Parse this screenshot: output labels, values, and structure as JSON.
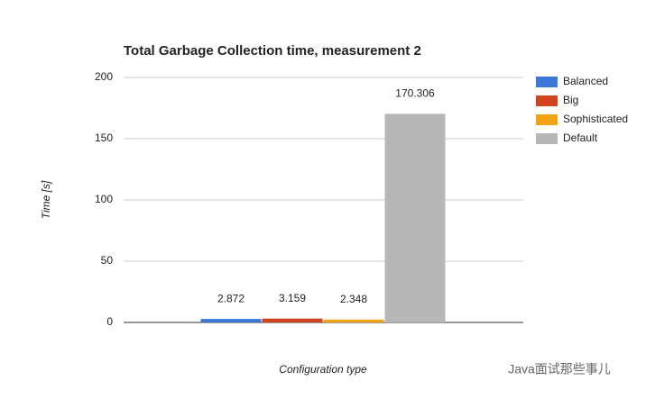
{
  "chart_data": {
    "type": "bar",
    "title": "Total Garbage Collection time, measurement 2",
    "x_label": "Configuration type",
    "y_label": "Time [s]",
    "categories": [
      null
    ],
    "series": [
      {
        "name": "Balanced",
        "color": "#3d78d8",
        "values": [
          2.872
        ]
      },
      {
        "name": "Big",
        "color": "#d1431f",
        "values": [
          3.159
        ]
      },
      {
        "name": "Sophisticated",
        "color": "#f4a317",
        "values": [
          2.348
        ]
      },
      {
        "name": "Default",
        "color": "#b7b7b7",
        "values": [
          170.306
        ]
      }
    ],
    "ylim": [
      0,
      200
    ],
    "yticks": [
      0,
      50,
      100,
      150,
      200
    ],
    "grid": true,
    "legend": "right"
  },
  "watermark": "Java面试那些事儿"
}
